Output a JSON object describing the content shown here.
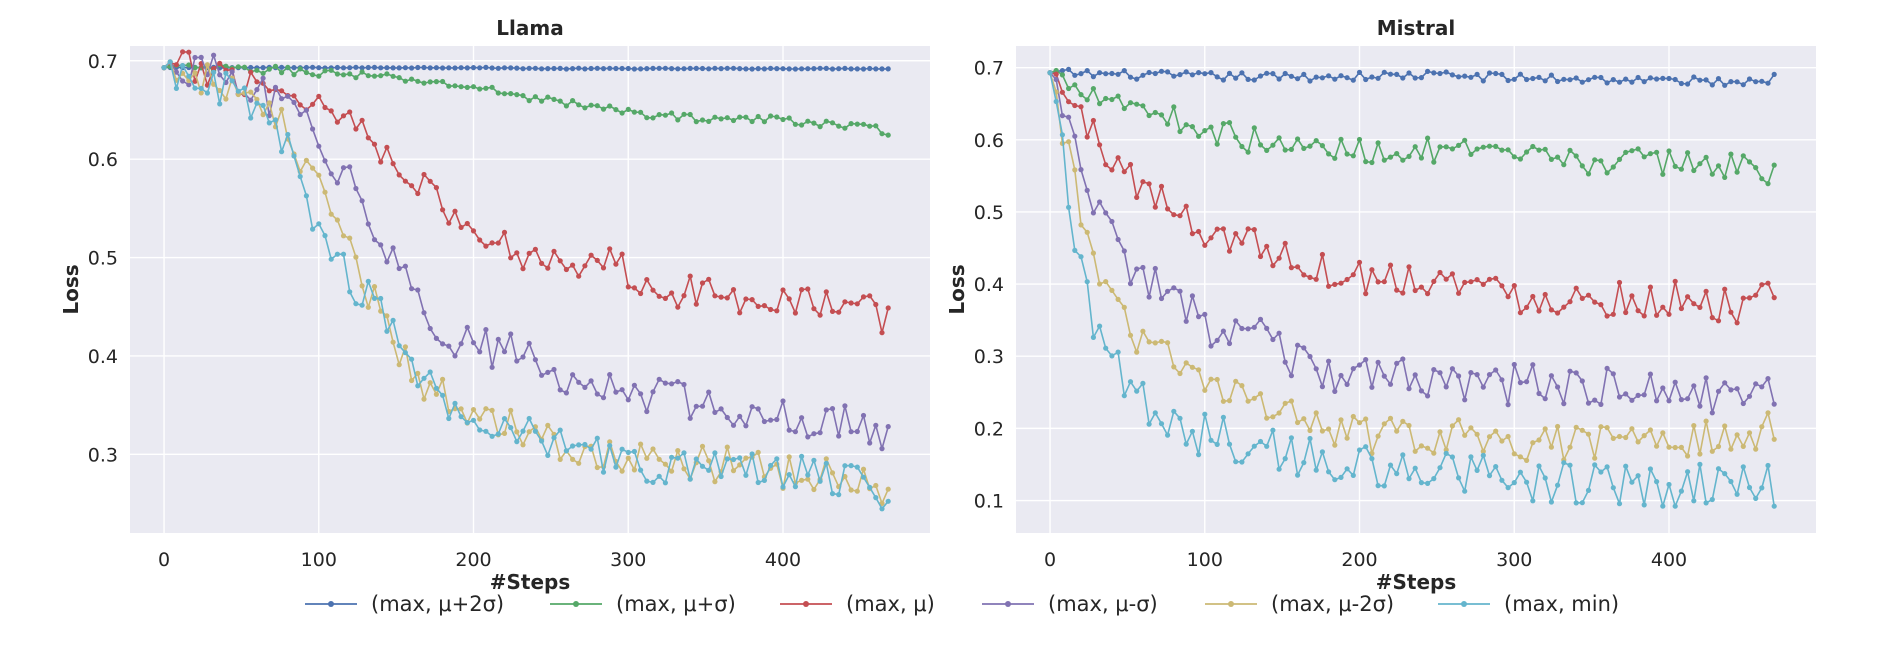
{
  "chart_data": [
    {
      "type": "line",
      "title": "Llama",
      "xlabel": "#Steps",
      "ylabel": "Loss",
      "xlim": [
        -22,
        495
      ],
      "ylim": [
        0.22,
        0.715
      ],
      "xticks": [
        0,
        100,
        200,
        300,
        400
      ],
      "yticks": [
        0.3,
        0.4,
        0.5,
        0.6,
        0.7
      ],
      "xtick_labels": [
        "0",
        "100",
        "200",
        "300",
        "400"
      ],
      "ytick_labels": [
        "0.3",
        "0.4",
        "0.5",
        "0.6",
        "0.7"
      ],
      "grid": true,
      "series": [
        {
          "name": "(max, μ+2σ)",
          "color": "#4c72b0",
          "x": [
            0,
            20,
            40,
            60,
            80,
            100,
            150,
            200,
            250,
            300,
            350,
            400,
            470
          ],
          "y": [
            0.693,
            0.693,
            0.693,
            0.693,
            0.693,
            0.693,
            0.693,
            0.693,
            0.692,
            0.692,
            0.692,
            0.692,
            0.692
          ],
          "noise": 0.0004
        },
        {
          "name": "(max, μ+σ)",
          "color": "#55a868",
          "x": [
            0,
            20,
            40,
            60,
            80,
            100,
            120,
            150,
            180,
            200,
            230,
            260,
            300,
            330,
            360,
            400,
            430,
            470
          ],
          "y": [
            0.693,
            0.693,
            0.692,
            0.691,
            0.69,
            0.688,
            0.686,
            0.682,
            0.677,
            0.673,
            0.665,
            0.657,
            0.648,
            0.643,
            0.641,
            0.64,
            0.636,
            0.628
          ],
          "noise": 0.004
        },
        {
          "name": "(max, μ)",
          "color": "#c44e52",
          "x": [
            0,
            20,
            40,
            60,
            80,
            100,
            120,
            140,
            160,
            180,
            200,
            220,
            250,
            290,
            320,
            350,
            400,
            440,
            470
          ],
          "y": [
            0.693,
            0.691,
            0.687,
            0.679,
            0.668,
            0.657,
            0.64,
            0.615,
            0.585,
            0.55,
            0.525,
            0.51,
            0.5,
            0.495,
            0.47,
            0.462,
            0.46,
            0.452,
            0.436
          ],
          "noise": 0.018
        },
        {
          "name": "(max, μ-σ)",
          "color": "#8172b2",
          "x": [
            0,
            20,
            40,
            60,
            80,
            100,
            120,
            140,
            160,
            180,
            200,
            230,
            260,
            300,
            340,
            380,
            420,
            470
          ],
          "y": [
            0.693,
            0.69,
            0.683,
            0.668,
            0.648,
            0.62,
            0.578,
            0.52,
            0.46,
            0.425,
            0.412,
            0.4,
            0.372,
            0.365,
            0.355,
            0.345,
            0.335,
            0.322
          ],
          "noise": 0.02
        },
        {
          "name": "(max, μ-2σ)",
          "color": "#ccb974",
          "x": [
            0,
            20,
            40,
            60,
            80,
            100,
            120,
            140,
            160,
            180,
            200,
            220,
            250,
            280,
            320,
            360,
            400,
            440,
            470
          ],
          "y": [
            0.693,
            0.688,
            0.675,
            0.655,
            0.625,
            0.565,
            0.5,
            0.44,
            0.385,
            0.36,
            0.345,
            0.338,
            0.315,
            0.302,
            0.292,
            0.288,
            0.285,
            0.282,
            0.265
          ],
          "noise": 0.02
        },
        {
          "name": "(max, min)",
          "color": "#64b5cd",
          "x": [
            0,
            20,
            40,
            60,
            80,
            100,
            120,
            140,
            160,
            180,
            200,
            220,
            250,
            280,
            320,
            360,
            400,
            440,
            470
          ],
          "y": [
            0.693,
            0.686,
            0.67,
            0.648,
            0.61,
            0.53,
            0.48,
            0.44,
            0.385,
            0.355,
            0.335,
            0.33,
            0.312,
            0.3,
            0.288,
            0.285,
            0.28,
            0.277,
            0.26
          ],
          "noise": 0.02
        }
      ]
    },
    {
      "type": "line",
      "title": "Mistral",
      "xlabel": "#Steps",
      "ylabel": "Loss",
      "xlim": [
        -22,
        495
      ],
      "ylim": [
        0.055,
        0.73
      ],
      "xticks": [
        0,
        100,
        200,
        300,
        400
      ],
      "yticks": [
        0.1,
        0.2,
        0.3,
        0.4,
        0.5,
        0.6,
        0.7
      ],
      "xtick_labels": [
        "0",
        "100",
        "200",
        "300",
        "400"
      ],
      "ytick_labels": [
        "0.1",
        "0.2",
        "0.3",
        "0.4",
        "0.5",
        "0.6",
        "0.7"
      ],
      "grid": true,
      "series": [
        {
          "name": "(max, μ+2σ)",
          "color": "#4c72b0",
          "x": [
            0,
            50,
            100,
            150,
            200,
            250,
            300,
            350,
            400,
            450,
            470
          ],
          "y": [
            0.693,
            0.69,
            0.688,
            0.687,
            0.688,
            0.69,
            0.686,
            0.684,
            0.682,
            0.68,
            0.686
          ],
          "noise": 0.006
        },
        {
          "name": "(max, μ+σ)",
          "color": "#55a868",
          "x": [
            0,
            10,
            20,
            40,
            60,
            80,
            100,
            120,
            150,
            200,
            250,
            300,
            350,
            400,
            440,
            470
          ],
          "y": [
            0.693,
            0.685,
            0.675,
            0.66,
            0.645,
            0.63,
            0.615,
            0.605,
            0.59,
            0.585,
            0.585,
            0.575,
            0.57,
            0.57,
            0.565,
            0.555
          ],
          "noise": 0.018
        },
        {
          "name": "(max, μ)",
          "color": "#c44e52",
          "x": [
            0,
            10,
            20,
            30,
            40,
            60,
            80,
            100,
            130,
            160,
            200,
            250,
            300,
            350,
            400,
            440,
            470
          ],
          "y": [
            0.693,
            0.665,
            0.63,
            0.6,
            0.575,
            0.535,
            0.5,
            0.475,
            0.46,
            0.43,
            0.41,
            0.41,
            0.385,
            0.38,
            0.38,
            0.37,
            0.378
          ],
          "noise": 0.025
        },
        {
          "name": "(max, μ-σ)",
          "color": "#8172b2",
          "x": [
            0,
            10,
            20,
            30,
            40,
            50,
            60,
            80,
            100,
            130,
            160,
            200,
            250,
            300,
            350,
            400,
            440,
            470
          ],
          "y": [
            0.693,
            0.64,
            0.56,
            0.5,
            0.46,
            0.43,
            0.41,
            0.37,
            0.345,
            0.33,
            0.29,
            0.265,
            0.27,
            0.26,
            0.255,
            0.255,
            0.24,
            0.24
          ],
          "noise": 0.03
        },
        {
          "name": "(max, μ-2σ)",
          "color": "#ccb974",
          "x": [
            0,
            10,
            20,
            30,
            40,
            50,
            60,
            80,
            100,
            130,
            160,
            200,
            250,
            300,
            350,
            400,
            440,
            470
          ],
          "y": [
            0.693,
            0.6,
            0.5,
            0.42,
            0.38,
            0.34,
            0.32,
            0.29,
            0.26,
            0.24,
            0.21,
            0.19,
            0.19,
            0.18,
            0.18,
            0.18,
            0.19,
            0.2
          ],
          "noise": 0.025
        },
        {
          "name": "(max, min)",
          "color": "#64b5cd",
          "x": [
            0,
            10,
            20,
            30,
            40,
            50,
            60,
            80,
            100,
            130,
            160,
            200,
            250,
            300,
            350,
            400,
            440,
            470
          ],
          "y": [
            0.693,
            0.56,
            0.42,
            0.34,
            0.3,
            0.26,
            0.24,
            0.2,
            0.19,
            0.18,
            0.165,
            0.15,
            0.14,
            0.13,
            0.125,
            0.12,
            0.125,
            0.12
          ],
          "noise": 0.03
        }
      ]
    }
  ],
  "legend": {
    "placement": "bottom-center",
    "items": [
      {
        "label": "(max, μ+2σ)",
        "color": "#4c72b0"
      },
      {
        "label": "(max, μ+σ)",
        "color": "#55a868"
      },
      {
        "label": "(max, μ)",
        "color": "#c44e52"
      },
      {
        "label": "(max, μ-σ)",
        "color": "#8172b2"
      },
      {
        "label": "(max, μ-2σ)",
        "color": "#ccb974"
      },
      {
        "label": "(max, min)",
        "color": "#64b5cd"
      }
    ]
  }
}
